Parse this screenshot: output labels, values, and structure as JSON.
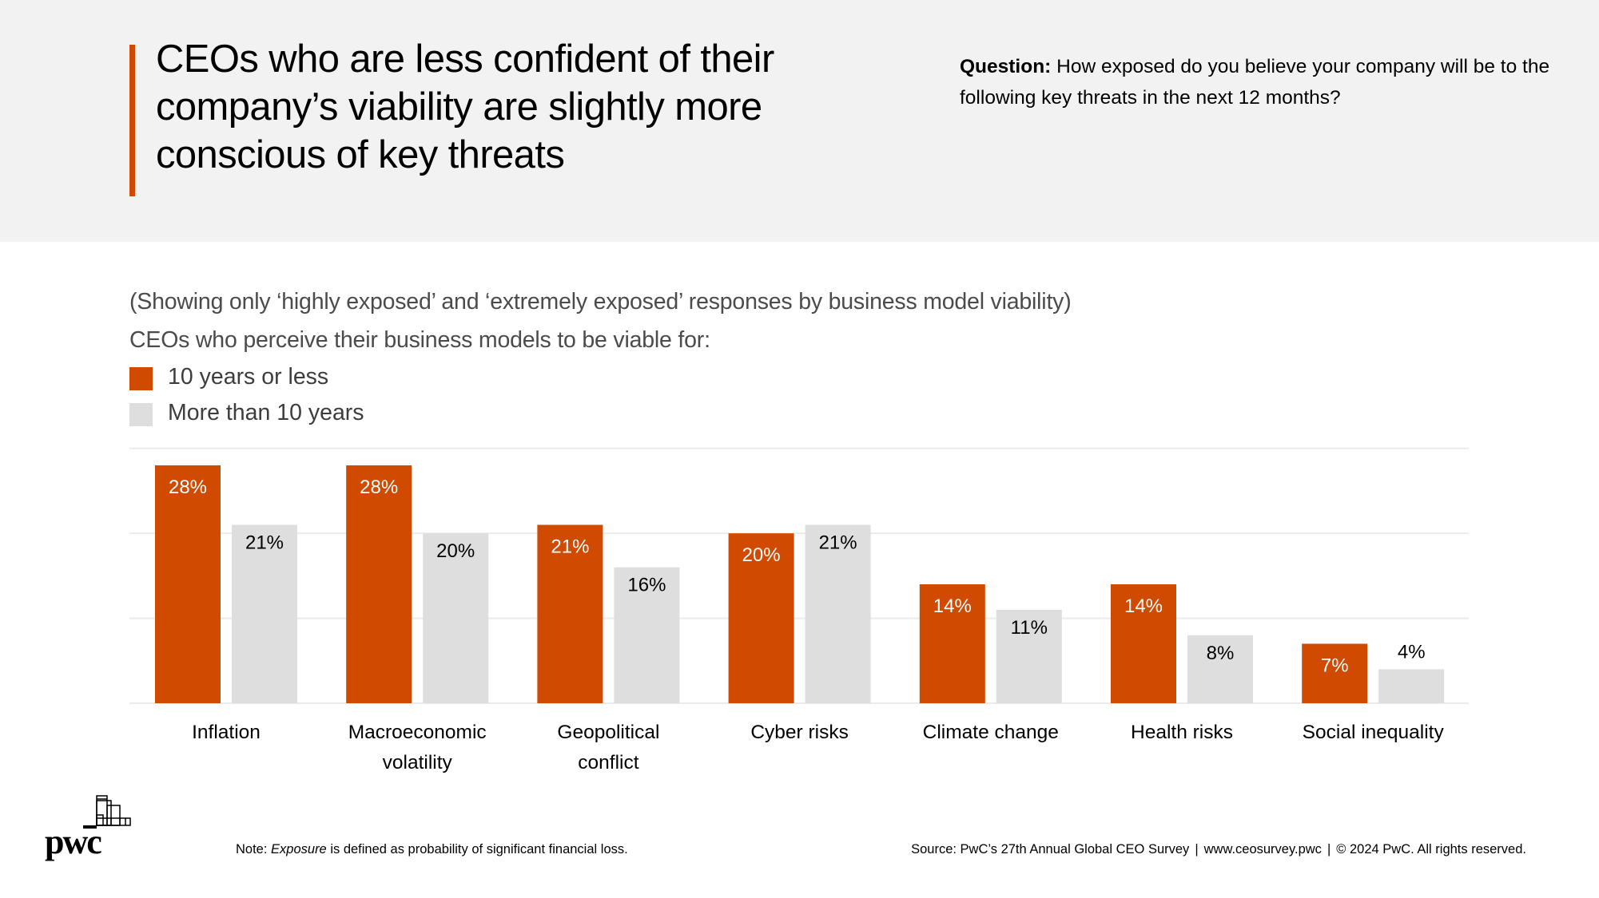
{
  "header": {
    "title": "CEOs who are less confident of their company’s viability are slightly more conscious of key threats",
    "question_label": "Question:",
    "question_text": " How exposed do you believe your company will be to the following key threats in the next 12 months?"
  },
  "intro": {
    "note": "(Showing only ‘highly exposed’ and ‘extremely exposed’ responses by business model viability)",
    "legend_title": "CEOs who perceive their business models to be viable for:"
  },
  "colors": {
    "accent": "#d04a02",
    "series_10_or_less": "#d04a02",
    "series_more_than_10": "#dedede",
    "gridline": "#ebebeb",
    "header_bg": "#f2f2f2"
  },
  "chart_data": {
    "type": "bar",
    "title": "",
    "xlabel": "",
    "ylabel": "",
    "ylim": [
      0,
      30
    ],
    "grid": true,
    "gridlines": [
      0,
      10,
      20,
      30
    ],
    "legend_position": "top-left",
    "categories": [
      [
        "Inflation"
      ],
      [
        "Macroeconomic",
        "volatility"
      ],
      [
        "Geopolitical",
        "conflict"
      ],
      [
        "Cyber risks"
      ],
      [
        "Climate change"
      ],
      [
        "Health risks"
      ],
      [
        "Social inequality"
      ]
    ],
    "series": [
      {
        "name": "10 years or less",
        "values": [
          28,
          28,
          21,
          20,
          14,
          14,
          7
        ]
      },
      {
        "name": "More than 10 years",
        "values": [
          21,
          20,
          16,
          21,
          11,
          8,
          4
        ]
      }
    ],
    "value_suffix": "%"
  },
  "footer": {
    "note_prefix": "Note: ",
    "note_italic": "Exposure",
    "note_suffix": " is defined as probability of significant financial loss.",
    "source": "Source: PwC’s 27th Annual Global CEO Survey",
    "url": "www.ceosurvey.pwc",
    "copyright": "© 2024 PwC. All rights reserved.",
    "separator": "|",
    "logo_text": "pwc"
  }
}
